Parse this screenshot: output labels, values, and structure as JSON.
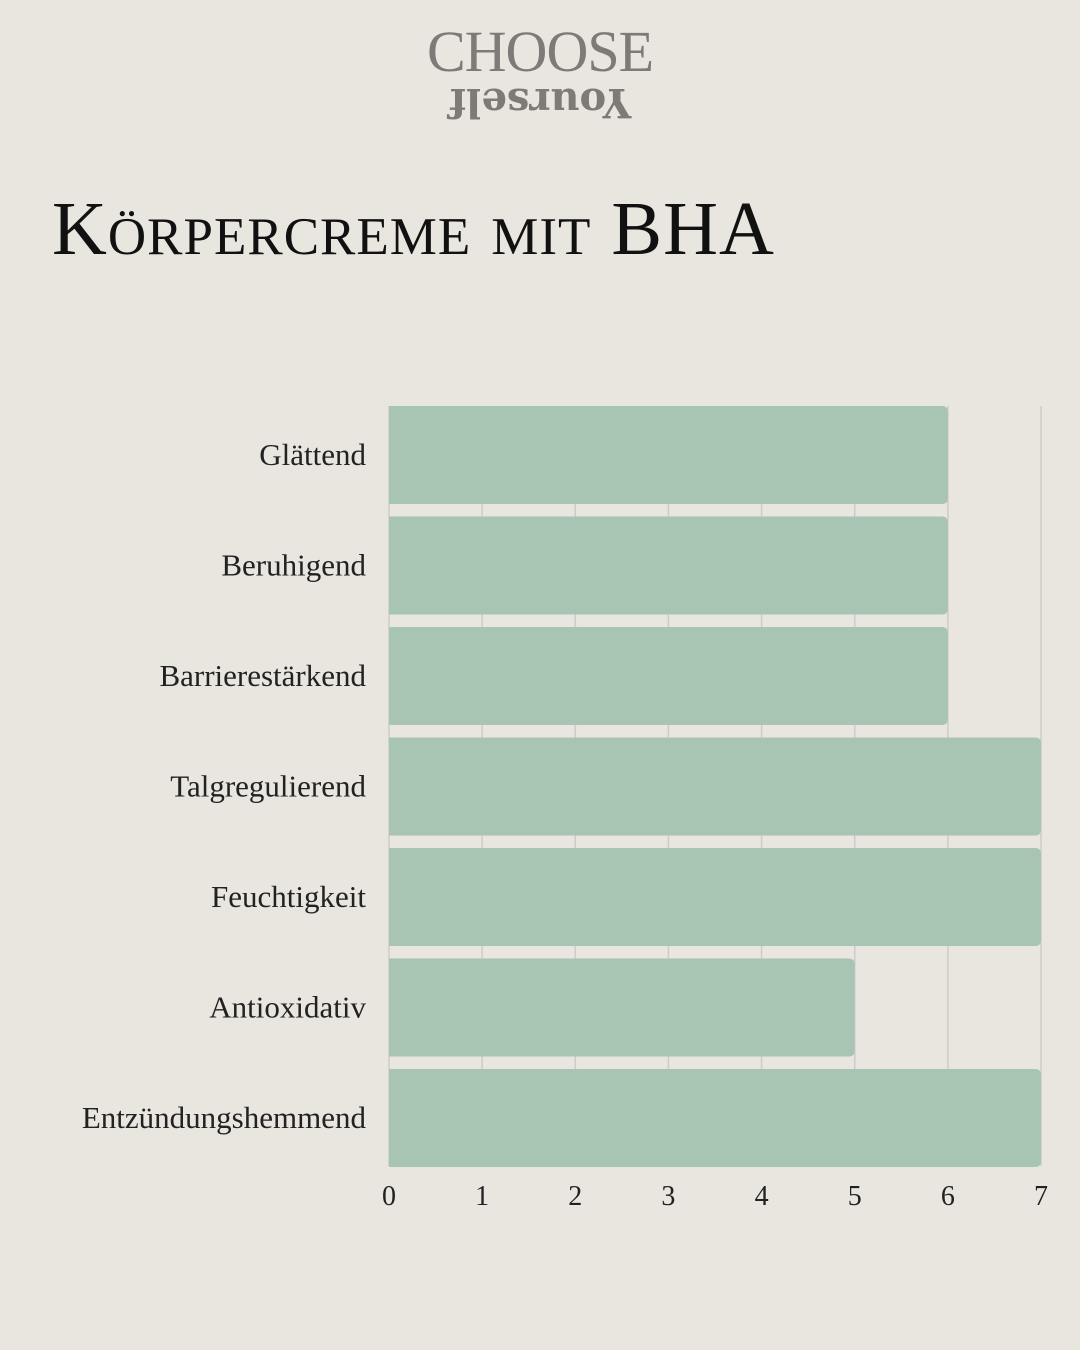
{
  "logo": {
    "line1": "CHOOSE",
    "line2": "Yourself"
  },
  "chart_data": {
    "type": "bar",
    "orientation": "horizontal",
    "title": "Körpercreme mit BHA",
    "categories": [
      "Glättend",
      "Beruhigend",
      "Barrierestärkend",
      "Talgregulierend",
      "Feuchtigkeit",
      "Antioxidativ",
      "Entzündungshemmend"
    ],
    "values": [
      6,
      6,
      6,
      7,
      7,
      5,
      7
    ],
    "xlim": [
      0,
      7
    ],
    "xticks": [
      "0",
      "1",
      "2",
      "3",
      "4",
      "5",
      "6",
      "7"
    ],
    "grid": true,
    "bar_color": "#a8c4b3",
    "grid_color": "#cfcbc5"
  }
}
